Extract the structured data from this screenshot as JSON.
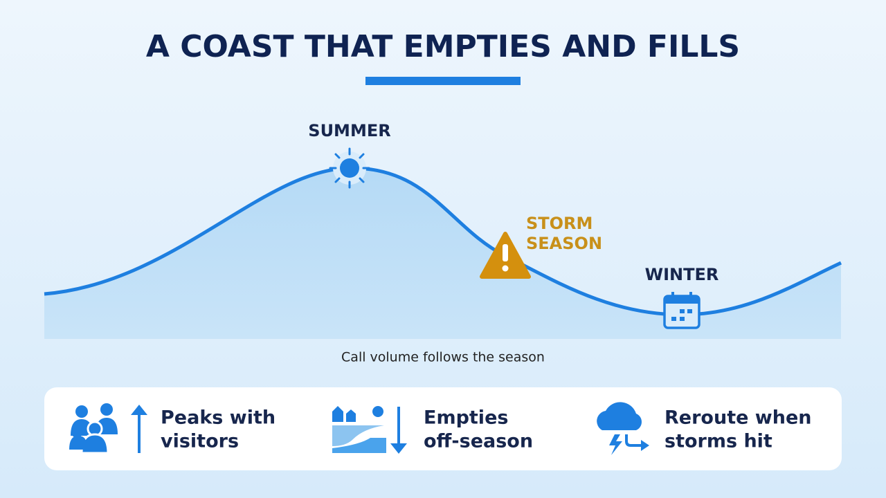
{
  "title": "A COAST THAT EMPTIES AND FILLS",
  "labels": {
    "summer": "SUMMER",
    "storm": [
      "STORM",
      "SEASON"
    ],
    "winter": "WINTER"
  },
  "caption": "Call volume follows the season",
  "cards": [
    {
      "lines": [
        "Peaks with",
        "visitors"
      ]
    },
    {
      "lines": [
        "Empties",
        "off-season"
      ]
    },
    {
      "lines": [
        "Reroute when",
        "storms hit"
      ]
    }
  ]
}
